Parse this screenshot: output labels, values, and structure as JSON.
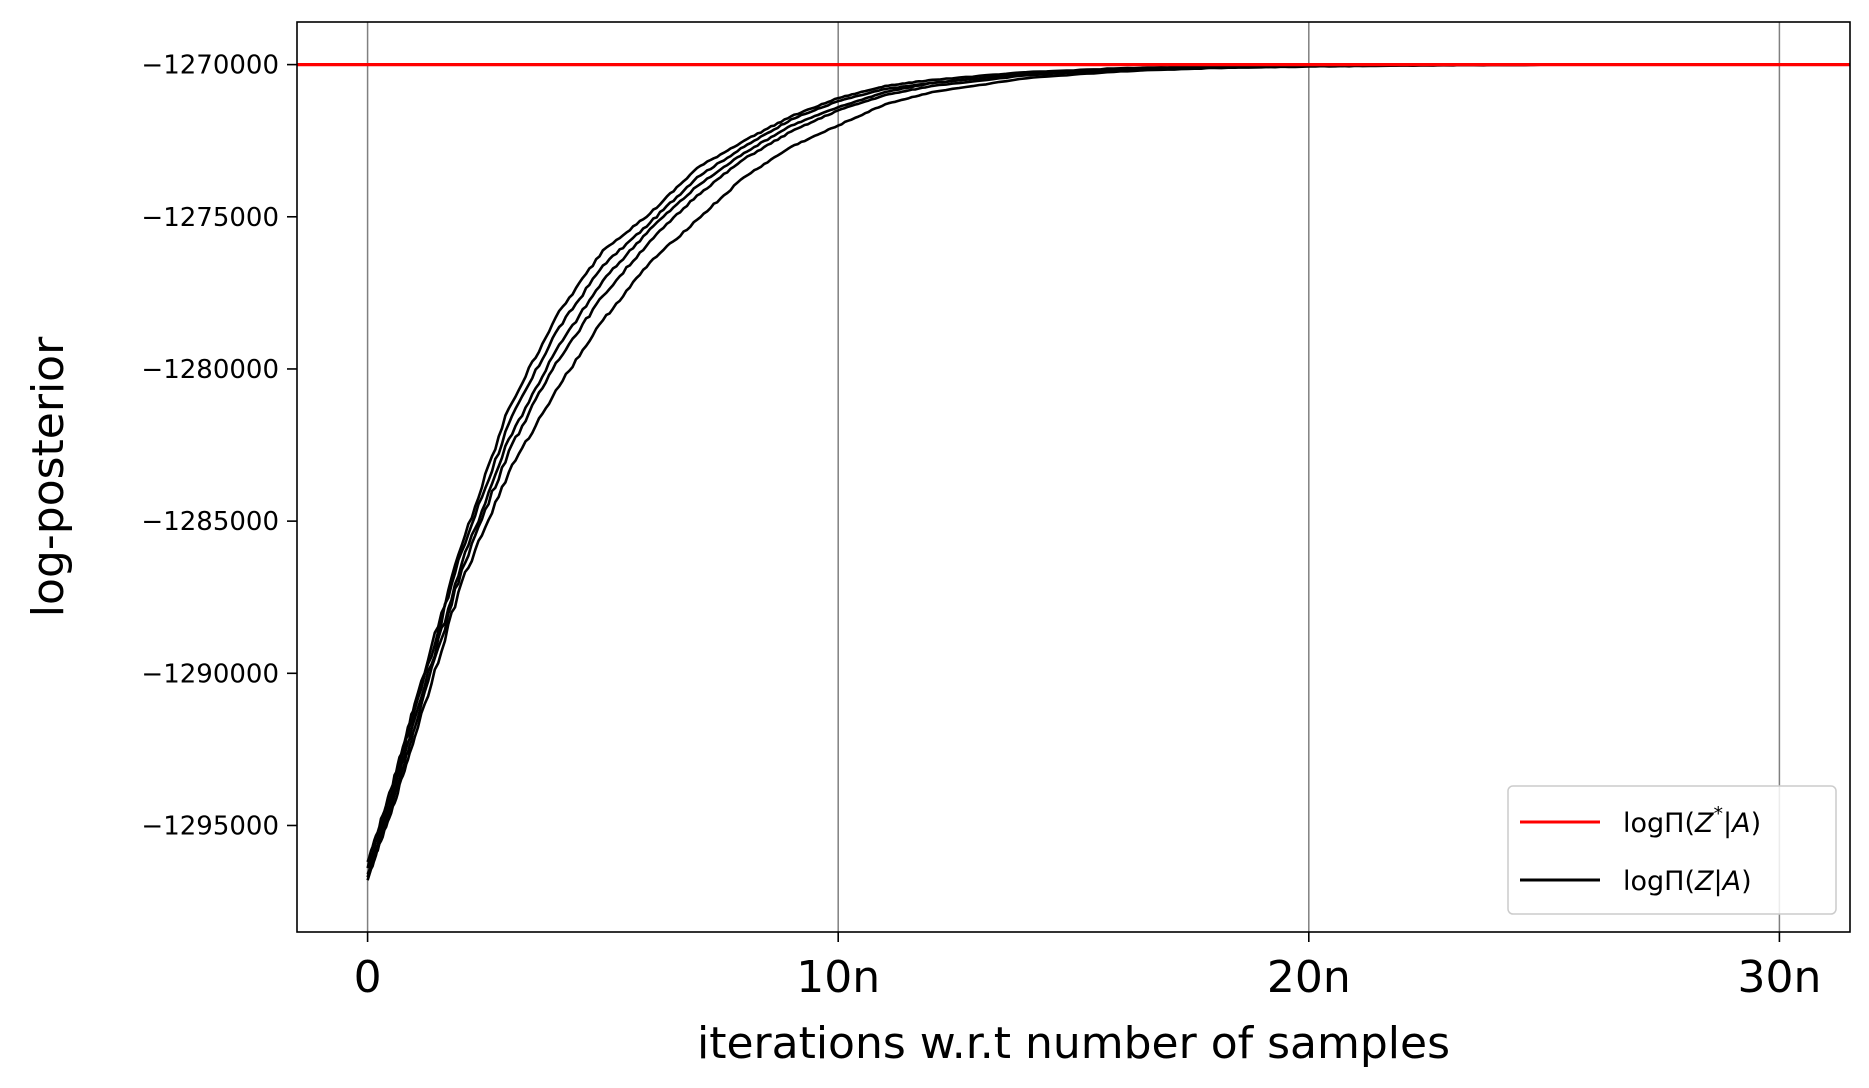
{
  "chart_data": {
    "type": "line",
    "xlabel": "iterations w.r.t number of samples",
    "ylabel": "log-posterior",
    "xlim": [
      -1.5,
      31.5
    ],
    "ylim": [
      -1298500,
      -1268600
    ],
    "xticks": [
      {
        "value": 0,
        "label": "0"
      },
      {
        "value": 10,
        "label": "10n"
      },
      {
        "value": 20,
        "label": "20n"
      },
      {
        "value": 30,
        "label": "30n"
      }
    ],
    "yticks": [
      {
        "value": -1270000,
        "label": "−1270000"
      },
      {
        "value": -1275000,
        "label": "−1275000"
      },
      {
        "value": -1280000,
        "label": "−1280000"
      },
      {
        "value": -1285000,
        "label": "−1285000"
      },
      {
        "value": -1290000,
        "label": "−1290000"
      },
      {
        "value": -1295000,
        "label": "−1295000"
      }
    ],
    "grid": "vertical at x ticks",
    "legend": {
      "position": "lower-right",
      "entries": [
        {
          "label": "logΠ(Z* | A)",
          "math": {
            "pre": "logΠ(",
            "var": "Z",
            "sup": "*",
            "mid": "|",
            "var2": "A",
            "post": ")"
          },
          "color": "#ff0000"
        },
        {
          "label": "logΠ(Z | A)",
          "math": {
            "pre": "logΠ(",
            "var": "Z",
            "sup": "",
            "mid": "|",
            "var2": "A",
            "post": ")"
          },
          "color": "#000000"
        }
      ]
    },
    "reference_line": {
      "name": "logΠ(Z* | A)",
      "y": -1270000,
      "color": "#ff0000"
    },
    "series": [
      {
        "color": "#000000",
        "x": [
          0,
          0.5,
          1,
          2,
          3,
          4,
          5,
          6,
          7,
          8,
          9,
          10,
          11,
          12,
          14,
          16,
          18,
          20,
          22,
          25
        ],
        "y": [
          -1296400,
          -1294000,
          -1291200,
          -1286000,
          -1281800,
          -1278800,
          -1276600,
          -1275200,
          -1273700,
          -1272700,
          -1271800,
          -1271200,
          -1270800,
          -1270600,
          -1270300,
          -1270150,
          -1270080,
          -1270040,
          -1270020,
          -1270000
        ]
      },
      {
        "color": "#000000",
        "x": [
          0,
          0.5,
          1,
          2,
          3,
          4,
          5,
          6,
          7,
          8,
          9,
          10,
          11,
          12,
          14,
          16,
          18,
          20,
          22,
          25
        ],
        "y": [
          -1296600,
          -1294200,
          -1291500,
          -1286400,
          -1282300,
          -1279400,
          -1277100,
          -1275400,
          -1274000,
          -1272900,
          -1272000,
          -1271400,
          -1270900,
          -1270600,
          -1270300,
          -1270150,
          -1270080,
          -1270040,
          -1270020,
          -1270000
        ]
      },
      {
        "color": "#000000",
        "x": [
          0,
          0.5,
          1,
          2,
          3,
          4,
          5,
          6,
          7,
          8,
          9,
          10,
          11,
          12,
          14,
          16,
          18,
          20,
          22,
          25
        ],
        "y": [
          -1296200,
          -1293800,
          -1291000,
          -1285800,
          -1281300,
          -1278300,
          -1276100,
          -1274900,
          -1273400,
          -1272500,
          -1271700,
          -1271100,
          -1270700,
          -1270500,
          -1270250,
          -1270120,
          -1270060,
          -1270030,
          -1270010,
          -1270000
        ]
      },
      {
        "color": "#000000",
        "x": [
          0,
          0.5,
          1,
          2,
          3,
          4,
          5,
          6,
          7,
          8,
          9,
          10,
          11,
          12,
          14,
          16,
          18,
          20,
          22,
          25
        ],
        "y": [
          -1296800,
          -1294400,
          -1291800,
          -1286600,
          -1282700,
          -1279800,
          -1277600,
          -1275800,
          -1274300,
          -1273100,
          -1272200,
          -1271500,
          -1271000,
          -1270700,
          -1270350,
          -1270180,
          -1270090,
          -1270050,
          -1270020,
          -1270000
        ]
      },
      {
        "color": "#000000",
        "x": [
          0,
          0.5,
          1,
          2,
          3,
          4,
          5,
          6,
          7,
          8,
          9,
          10,
          11,
          12,
          14,
          16,
          18,
          20,
          22,
          25
        ],
        "y": [
          -1296700,
          -1294600,
          -1292100,
          -1287000,
          -1283400,
          -1280700,
          -1278400,
          -1276500,
          -1275100,
          -1273700,
          -1272700,
          -1272000,
          -1271300,
          -1270900,
          -1270450,
          -1270220,
          -1270110,
          -1270060,
          -1270030,
          -1270000
        ]
      }
    ]
  }
}
